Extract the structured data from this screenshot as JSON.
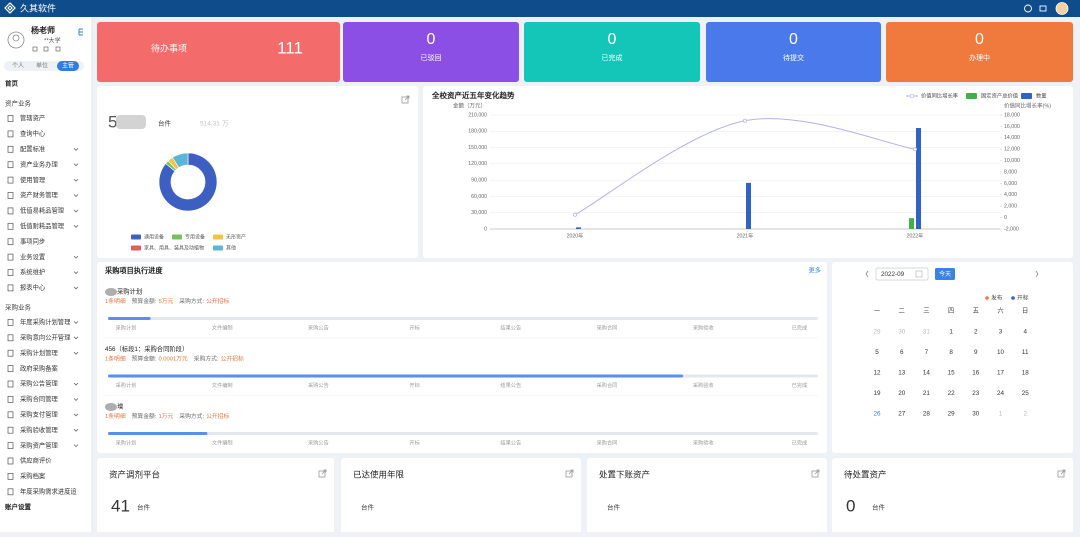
{
  "header": {
    "brand": "久其软件"
  },
  "sidebar": {
    "user_name": "杨老师",
    "org": "**大学",
    "roles": [
      "个人",
      "单位",
      "主管"
    ],
    "active_role": 2,
    "menu": [
      {
        "label": "首页",
        "kind": "top"
      },
      {
        "label": "资产业务",
        "kind": "section"
      },
      {
        "label": "管辖资产",
        "kind": "item",
        "expandable": false
      },
      {
        "label": "查询中心",
        "kind": "item",
        "expandable": false
      },
      {
        "label": "配置标准",
        "kind": "item",
        "expandable": true
      },
      {
        "label": "资产业务办理",
        "kind": "item",
        "expandable": true
      },
      {
        "label": "使用管理",
        "kind": "item",
        "expandable": true
      },
      {
        "label": "资产财务管理",
        "kind": "item",
        "expandable": true
      },
      {
        "label": "低值易耗品管理",
        "kind": "item",
        "expandable": true
      },
      {
        "label": "低值耐耗品管理",
        "kind": "item",
        "expandable": true
      },
      {
        "label": "事项同步",
        "kind": "item",
        "expandable": false
      },
      {
        "label": "业务设置",
        "kind": "item",
        "expandable": true
      },
      {
        "label": "系统维护",
        "kind": "item",
        "expandable": true
      },
      {
        "label": "报表中心",
        "kind": "item",
        "expandable": true
      },
      {
        "label": "采购业务",
        "kind": "section"
      },
      {
        "label": "年度采购计划管理",
        "kind": "item",
        "expandable": true
      },
      {
        "label": "采购意向公开管理",
        "kind": "item",
        "expandable": true
      },
      {
        "label": "采购计划管理",
        "kind": "item",
        "expandable": true
      },
      {
        "label": "政府采购备案",
        "kind": "item",
        "expandable": false
      },
      {
        "label": "采购公告管理",
        "kind": "item",
        "expandable": true
      },
      {
        "label": "采购合同管理",
        "kind": "item",
        "expandable": true
      },
      {
        "label": "采购支付管理",
        "kind": "item",
        "expandable": true
      },
      {
        "label": "采购验收管理",
        "kind": "item",
        "expandable": true
      },
      {
        "label": "采购资产管理",
        "kind": "item",
        "expandable": true
      },
      {
        "label": "供应商评价",
        "kind": "item",
        "expandable": false
      },
      {
        "label": "采购档案",
        "kind": "item",
        "expandable": false
      },
      {
        "label": "年度采购需求进度追",
        "kind": "item",
        "expandable": false
      },
      {
        "label": "账户设置",
        "kind": "top"
      }
    ]
  },
  "stat_cards": [
    {
      "label": "待办事项",
      "value": 111,
      "color": "#f36b6b"
    },
    {
      "label": "已驳回",
      "value": 0,
      "color": "#8b4fe6"
    },
    {
      "label": "已完成",
      "value": 0,
      "color": "#14c6b7"
    },
    {
      "label": "待提交",
      "value": 0,
      "color": "#4a79ec"
    },
    {
      "label": "办理中",
      "value": 0,
      "color": "#f07a3e"
    }
  ],
  "asset_summary": {
    "count": 5,
    "unit": "台件",
    "amount": "514.31",
    "amount_unit": "万"
  },
  "chart_data": [
    {
      "type": "pie",
      "donut": true,
      "categories": [
        "通用设备",
        "专用设备",
        "无形资产",
        "家具、用具、装具及动植物",
        "其他"
      ],
      "values": [
        86,
        2,
        3,
        0,
        9
      ],
      "colors": [
        "#3d5fc2",
        "#72c35c",
        "#f5c342",
        "#e35d5d",
        "#5cb5d7"
      ]
    },
    {
      "type": "bar",
      "title": "全校资产近五年变化趋势",
      "y_label": "金额（万元）",
      "y2_label": "价值同比增长率(%)",
      "categories": [
        "2020年",
        "2021年",
        "2022年"
      ],
      "series": [
        {
          "name": "价值同比增长率",
          "type": "line",
          "axis": "y2",
          "color": "#b5aef5",
          "values": [
            500,
            17000,
            12000
          ]
        },
        {
          "name": "固定资产总价值",
          "color": "#41b04a",
          "values": [
            0,
            0,
            20000
          ]
        },
        {
          "name": "数量",
          "color": "#2f63c4",
          "values": [
            3000,
            85000,
            186000
          ]
        }
      ],
      "ylim": [
        0,
        210000
      ],
      "yticks": [
        0,
        {
          "value": 30000,
          "label": "30,000"
        },
        {
          "value": 60000,
          "label": "60,000"
        },
        {
          "value": 90000,
          "label": "90,000"
        },
        {
          "value": 120000,
          "label": "120,000"
        },
        {
          "value": 150000,
          "label": "150,000"
        },
        {
          "value": 180000,
          "label": "180,000"
        },
        {
          "value": 210000,
          "label": "210,000"
        }
      ],
      "y2lim": [
        -2000,
        18000
      ],
      "y2ticks": [
        {
          "value": -2000,
          "label": "-2,000"
        },
        0,
        {
          "value": 2000,
          "label": "2,000"
        },
        {
          "value": 4000,
          "label": "4,000"
        },
        {
          "value": 6000,
          "label": "6,000"
        },
        {
          "value": 8000,
          "label": "8,000"
        },
        {
          "value": 10000,
          "label": "10,000"
        },
        {
          "value": 12000,
          "label": "12,000"
        },
        {
          "value": 14000,
          "label": "14,000"
        },
        {
          "value": 16000,
          "label": "16,000"
        },
        {
          "value": 18000,
          "label": "18,000"
        }
      ],
      "grid": true
    }
  ],
  "procurement": {
    "title": "采购项目执行进度",
    "more": "更多",
    "steps": [
      "采购计划",
      "文件编制",
      "采购公告",
      "开标",
      "结果公告",
      "采购合同",
      "采购验收",
      "已完成"
    ],
    "projects": [
      {
        "name": "采购计划",
        "detail": "1条明细",
        "budget_label": "预算金额:",
        "budget": "5万元",
        "method_label": "采购方式:",
        "method": "公开招标",
        "progress": 6
      },
      {
        "name": "456（标段1：采购合同阶段）",
        "detail": "1条明细",
        "budget_label": "预算金额:",
        "budget": "0.0001万元",
        "method_label": "采购方式:",
        "method": "公开招标",
        "progress": 81
      },
      {
        "name": "增",
        "detail": "1条明细",
        "budget_label": "预算金额:",
        "budget": "1万元",
        "method_label": "采购方式:",
        "method": "公开招标",
        "progress": 14
      }
    ]
  },
  "calendar": {
    "month": "2022-09",
    "today_button": "今天",
    "legend": [
      {
        "label": "发布",
        "color": "#f07a3e"
      },
      {
        "label": "开标",
        "color": "#2f63c4"
      }
    ],
    "weekdays": [
      "一",
      "二",
      "三",
      "四",
      "五",
      "六",
      "日"
    ],
    "weeks": [
      [
        29,
        30,
        31,
        1,
        2,
        3,
        4
      ],
      [
        5,
        6,
        7,
        8,
        9,
        10,
        11
      ],
      [
        12,
        13,
        14,
        15,
        16,
        17,
        18
      ],
      [
        19,
        20,
        21,
        22,
        23,
        24,
        25
      ],
      [
        26,
        27,
        28,
        29,
        30,
        1,
        2
      ]
    ],
    "leading_other_month": 3,
    "trailing_other_month": 2,
    "today": 26
  },
  "bottom_cards": [
    {
      "title": "资产调剂平台",
      "value": 41,
      "unit": "台件"
    },
    {
      "title": "已达使用年限",
      "unit": "台件"
    },
    {
      "title": "处置下账资产",
      "unit": "台件"
    },
    {
      "title": "待处置资产",
      "value": 0,
      "unit": "台件"
    }
  ]
}
